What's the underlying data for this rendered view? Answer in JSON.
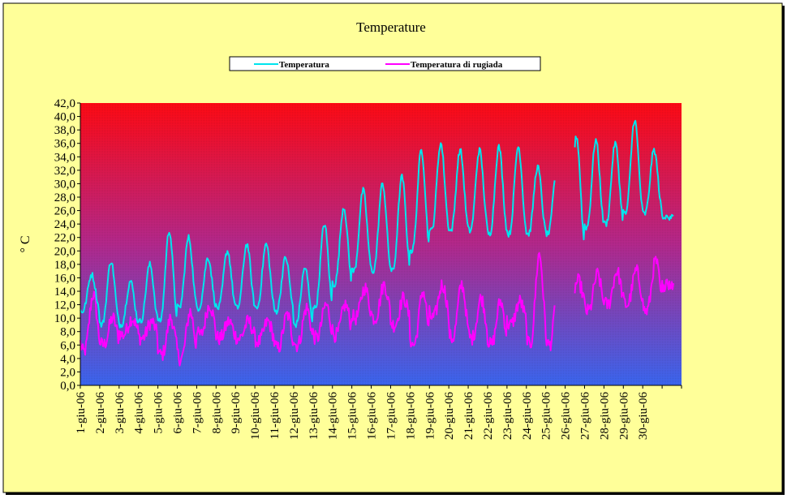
{
  "chart_data": {
    "type": "line",
    "title": "Temperature",
    "ylabel": "° C",
    "xlabel": "",
    "ylim": [
      0,
      42
    ],
    "ytick_step": 2,
    "ytick_labels": [
      "0,0",
      "2,0",
      "4,0",
      "6,0",
      "8,0",
      "10,0",
      "12,0",
      "14,0",
      "16,0",
      "18,0",
      "20,0",
      "22,0",
      "24,0",
      "26,0",
      "28,0",
      "30,0",
      "32,0",
      "34,0",
      "36,0",
      "38,0",
      "40,0",
      "42,0"
    ],
    "categories": [
      "1-giu-06",
      "2-giu-06",
      "3-giu-06",
      "4-giu-06",
      "5-giu-06",
      "6-giu-06",
      "7-giu-06",
      "8-giu-06",
      "9-giu-06",
      "10-giu-06",
      "11-giu-06",
      "12-giu-06",
      "13-giu-06",
      "14-giu-06",
      "15-giu-06",
      "16-giu-06",
      "17-giu-06",
      "18-giu-06",
      "19-giu-06",
      "20-giu-06",
      "21-giu-06",
      "22-giu-06",
      "23-giu-06",
      "24-giu-06",
      "25-giu-06",
      "26-giu-06",
      "27-giu-06",
      "28-giu-06",
      "29-giu-06",
      "30-giu-06"
    ],
    "legend_position": "top",
    "grid": false,
    "background": "vertical gradient red (top) to blue (bottom)",
    "series": [
      {
        "name": "Temperatura",
        "color": "#00e5ee",
        "daily_min": [
          11.0,
          9.0,
          9.0,
          9.5,
          9.5,
          11.5,
          11.5,
          11.5,
          11.5,
          11.5,
          11.0,
          9.0,
          11.5,
          15.0,
          17.0,
          17.0,
          17.0,
          20.0,
          23.0,
          23.0,
          23.0,
          22.5,
          22.5,
          22.5,
          null,
          20.5,
          23.5,
          24.0,
          25.5,
          25.5
        ],
        "daily_max": [
          16.5,
          18.5,
          15.5,
          18.0,
          23.0,
          22.0,
          19.0,
          20.0,
          21.0,
          21.0,
          19.0,
          17.5,
          24.0,
          26.5,
          29.0,
          30.0,
          31.0,
          35.0,
          36.0,
          35.0,
          35.0,
          35.5,
          35.5,
          32.5,
          32.5,
          37.0,
          36.5,
          36.0,
          39.5,
          35.0
        ],
        "gaps": [
          [
            24.5,
            25.5
          ]
        ],
        "final_value": 25.0
      },
      {
        "name": "Temperatura di rugiada",
        "color": "#ff00ff",
        "daily_min": [
          5.0,
          6.0,
          7.5,
          7.0,
          4.5,
          4.0,
          7.5,
          7.0,
          7.0,
          6.5,
          5.5,
          6.0,
          7.0,
          7.5,
          10.0,
          10.0,
          9.0,
          6.0,
          10.0,
          7.0,
          7.0,
          6.0,
          9.0,
          6.0,
          null,
          12.0,
          11.0,
          12.0,
          12.0,
          11.0
        ],
        "daily_max": [
          13.5,
          10.0,
          10.0,
          9.5,
          10.0,
          11.0,
          12.0,
          9.5,
          9.5,
          9.5,
          10.5,
          11.5,
          12.0,
          12.0,
          14.5,
          15.0,
          13.0,
          14.0,
          15.0,
          15.0,
          13.0,
          12.5,
          12.5,
          19.5,
          15.5,
          15.5,
          16.5,
          17.0,
          17.0,
          18.5
        ],
        "gaps": [
          [
            24.5,
            25.5
          ]
        ],
        "final_value": 15.0
      }
    ]
  }
}
